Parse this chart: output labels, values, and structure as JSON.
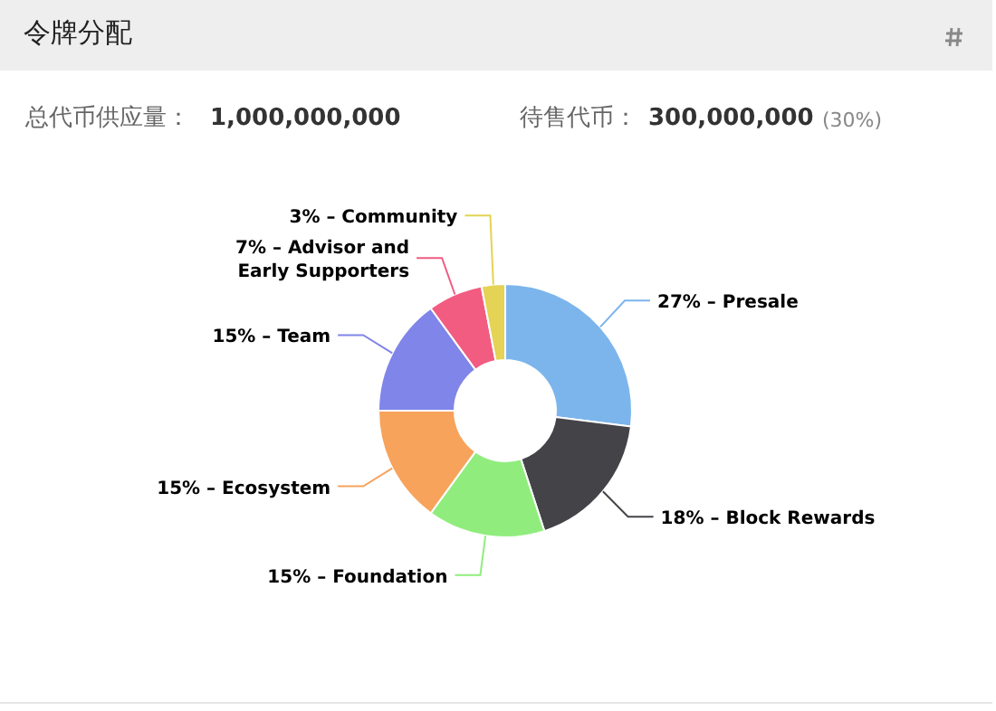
{
  "chart_data": {
    "type": "donut",
    "title": "令牌分配",
    "annotations": [
      "总代币供应量：",
      "1,000,000,000",
      "待售代币：",
      "300,000,000",
      "(30%)"
    ],
    "categories": [
      "Presale",
      "Block Rewards",
      "Foundation",
      "Ecosystem",
      "Team",
      "Advisor and Early Supporters",
      "Community"
    ],
    "values": [
      27,
      18,
      15,
      15,
      15,
      7,
      3
    ],
    "value_labels": [
      "27%",
      "18%",
      "15%",
      "15%",
      "15%",
      "7%",
      "3%"
    ],
    "colors": [
      "#7cb5ec",
      "#434348",
      "#90ed7d",
      "#f7a35c",
      "#8085e9",
      "#f15c80",
      "#e4d354"
    ],
    "legend": false
  }
}
